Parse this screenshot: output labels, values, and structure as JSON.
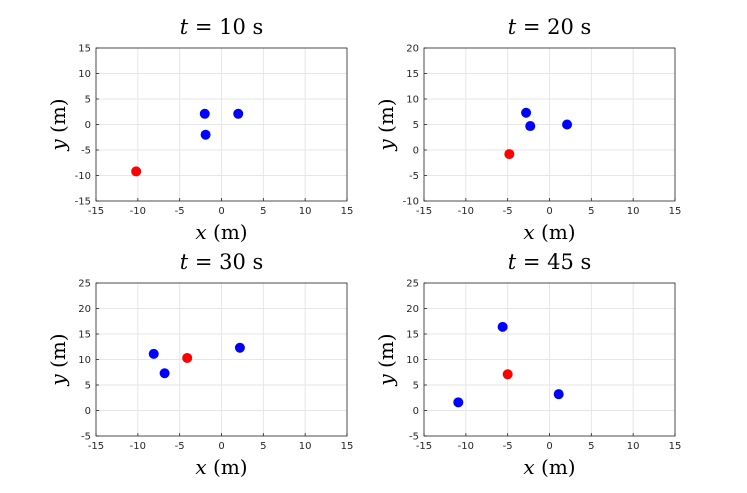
{
  "colors": {
    "blue": "#0000ff",
    "red": "#ff0000",
    "grid": "#e6e6e6",
    "axis": "#262626"
  },
  "chart_data": [
    {
      "type": "scatter",
      "title": {
        "var": "t",
        "value": "= 10 s"
      },
      "xlabel": {
        "var": "x",
        "unit": "(m)"
      },
      "ylabel": {
        "var": "y",
        "unit": "(m)"
      },
      "xlim": [
        -15,
        15
      ],
      "ylim": [
        -15,
        15
      ],
      "xticks": [
        -15,
        -10,
        -5,
        0,
        5,
        10,
        15
      ],
      "yticks": [
        -15,
        -10,
        -5,
        0,
        5,
        10,
        15
      ],
      "grid": true,
      "points": [
        {
          "x": -2.0,
          "y": 2.1,
          "color": "blue"
        },
        {
          "x": 2.0,
          "y": 2.1,
          "color": "blue"
        },
        {
          "x": -1.9,
          "y": -2.0,
          "color": "blue"
        },
        {
          "x": -10.2,
          "y": -9.2,
          "color": "red"
        }
      ]
    },
    {
      "type": "scatter",
      "title": {
        "var": "t",
        "value": "= 20 s"
      },
      "xlabel": {
        "var": "x",
        "unit": "(m)"
      },
      "ylabel": {
        "var": "y",
        "unit": "(m)"
      },
      "xlim": [
        -15,
        15
      ],
      "ylim": [
        -10,
        20
      ],
      "xticks": [
        -15,
        -10,
        -5,
        0,
        5,
        10,
        15
      ],
      "yticks": [
        -10,
        -5,
        0,
        5,
        10,
        15,
        20
      ],
      "grid": true,
      "points": [
        {
          "x": -2.8,
          "y": 7.3,
          "color": "blue"
        },
        {
          "x": -2.3,
          "y": 4.7,
          "color": "blue"
        },
        {
          "x": 2.1,
          "y": 5.0,
          "color": "blue"
        },
        {
          "x": -4.8,
          "y": -0.8,
          "color": "red"
        }
      ]
    },
    {
      "type": "scatter",
      "title": {
        "var": "t",
        "value": "= 30 s"
      },
      "xlabel": {
        "var": "x",
        "unit": "(m)"
      },
      "ylabel": {
        "var": "y",
        "unit": "(m)"
      },
      "xlim": [
        -15,
        15
      ],
      "ylim": [
        -5,
        25
      ],
      "xticks": [
        -15,
        -10,
        -5,
        0,
        5,
        10,
        15
      ],
      "yticks": [
        -5,
        0,
        5,
        10,
        15,
        20,
        25
      ],
      "grid": true,
      "points": [
        {
          "x": -8.1,
          "y": 11.1,
          "color": "blue"
        },
        {
          "x": -6.8,
          "y": 7.3,
          "color": "blue"
        },
        {
          "x": 2.2,
          "y": 12.3,
          "color": "blue"
        },
        {
          "x": -4.1,
          "y": 10.3,
          "color": "red"
        }
      ]
    },
    {
      "type": "scatter",
      "title": {
        "var": "t",
        "value": "= 45 s"
      },
      "xlabel": {
        "var": "x",
        "unit": "(m)"
      },
      "ylabel": {
        "var": "y",
        "unit": "(m)"
      },
      "xlim": [
        -15,
        15
      ],
      "ylim": [
        -5,
        25
      ],
      "xticks": [
        -15,
        -10,
        -5,
        0,
        5,
        10,
        15
      ],
      "yticks": [
        -5,
        0,
        5,
        10,
        15,
        20,
        25
      ],
      "grid": true,
      "points": [
        {
          "x": -5.6,
          "y": 16.4,
          "color": "blue"
        },
        {
          "x": -10.9,
          "y": 1.6,
          "color": "blue"
        },
        {
          "x": 1.1,
          "y": 3.2,
          "color": "blue"
        },
        {
          "x": -5.0,
          "y": 7.1,
          "color": "red"
        }
      ]
    }
  ]
}
